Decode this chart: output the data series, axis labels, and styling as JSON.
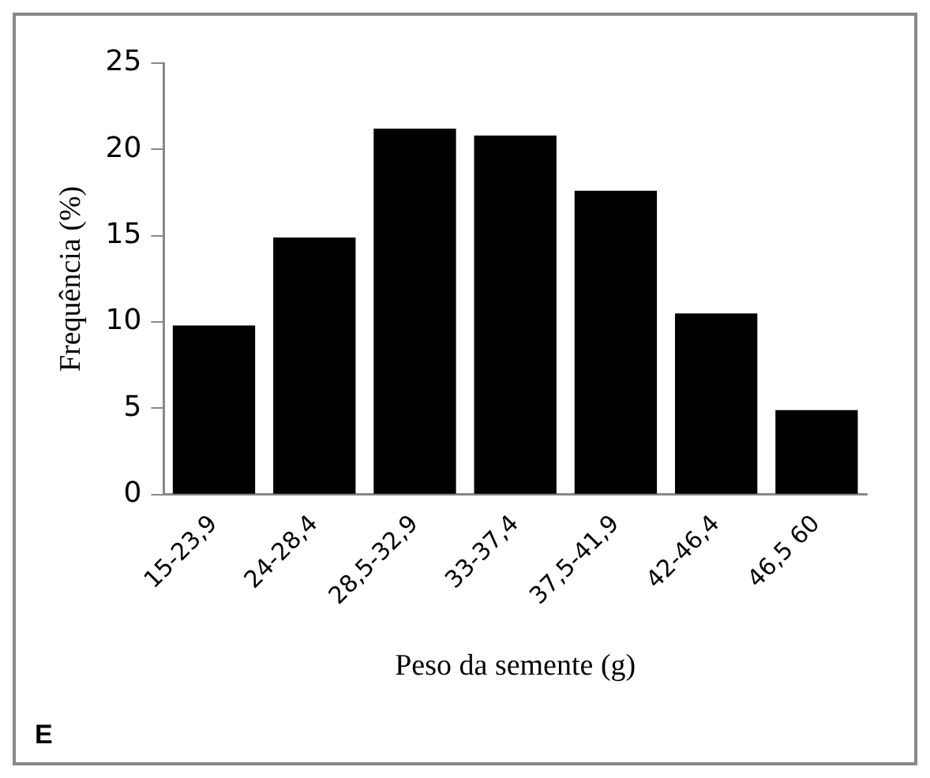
{
  "chart_data": {
    "type": "bar",
    "xlabel": "Peso da semente (g)",
    "ylabel": "Frequência (%)",
    "annotations": [
      "E"
    ],
    "categories": [
      "15-23,9",
      "24-28,4",
      "28,5-32,9",
      "33-37,4",
      "37,5-41,9",
      "42-46,4",
      "46,5 60"
    ],
    "values": [
      9.8,
      14.9,
      21.2,
      20.8,
      17.6,
      10.5,
      4.9
    ],
    "color": "#000000",
    "ylim": [
      0,
      25
    ],
    "yticks": [
      0,
      5,
      10,
      15,
      20,
      25
    ],
    "grid": false,
    "legend": false
  }
}
